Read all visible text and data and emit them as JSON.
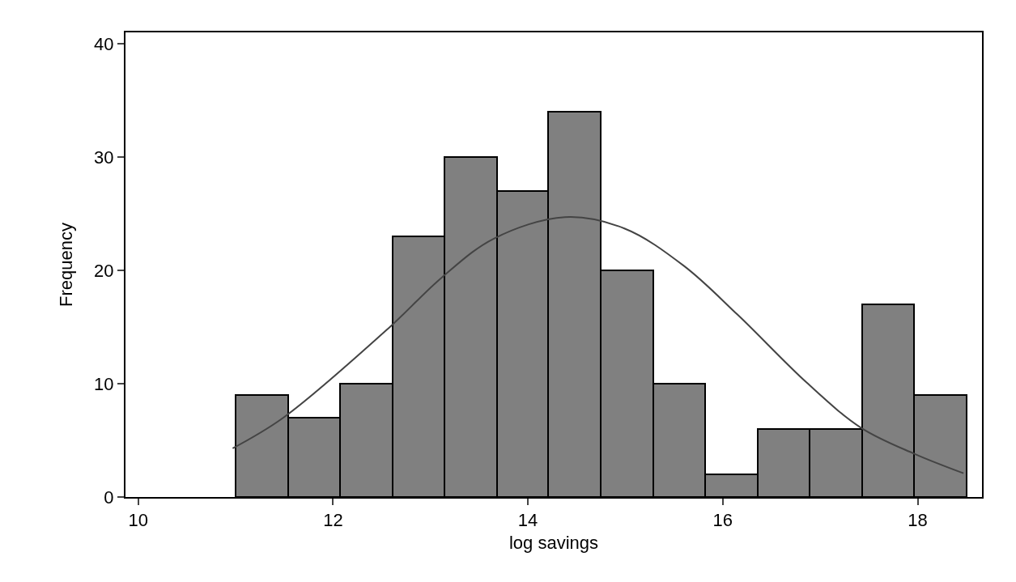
{
  "chart_data": {
    "type": "histogram",
    "xlabel": "log savings",
    "ylabel": "Frequency",
    "bins": [
      11.0,
      11.54,
      12.07,
      12.61,
      13.14,
      13.68,
      14.21,
      14.75,
      15.29,
      15.82,
      16.36,
      16.89,
      17.43,
      17.96,
      18.5
    ],
    "values": [
      9,
      7,
      10,
      23,
      30,
      27,
      34,
      20,
      10,
      2,
      6,
      6,
      17,
      9
    ],
    "color": "#808080",
    "series": [
      {
        "type": "line",
        "color": "#444444",
        "x": [
          10.97,
          11.49,
          12.57,
          13.12,
          13.65,
          14.38,
          14.99,
          15.6,
          16.15,
          16.86,
          17.42,
          17.97,
          18.47
        ],
        "values": [
          4.3,
          7.0,
          14.9,
          19.4,
          22.8,
          24.7,
          23.7,
          20.4,
          16.1,
          10.1,
          6.1,
          3.8,
          2.1
        ]
      }
    ],
    "xlim": [
      9.87,
      18.66
    ],
    "xticks": [
      10,
      12,
      14,
      16,
      18
    ],
    "ylim": [
      0,
      41
    ],
    "yticks": [
      0,
      10,
      20,
      30,
      40
    ],
    "grid": false
  }
}
